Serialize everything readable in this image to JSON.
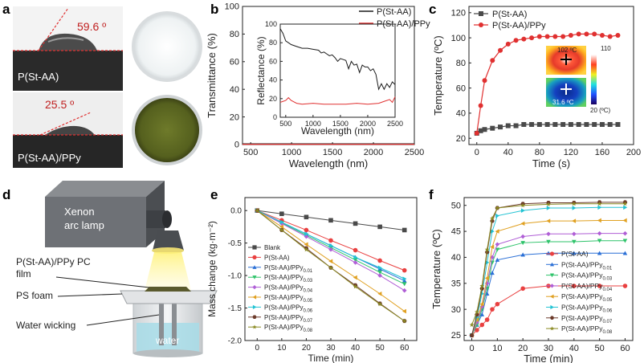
{
  "figure": {
    "panels": {
      "a": {
        "label": "a",
        "samples": [
          {
            "name": "P(St-AA)",
            "contact_angle": "59.6 º"
          },
          {
            "name": "P(St-AA)/PPy",
            "contact_angle": "25.5 º"
          }
        ]
      },
      "d": {
        "label": "d",
        "lamp": "Xenon\narc lamp",
        "film": "P(St-AA)/PPy PC\nfilm",
        "foam": "PS foam",
        "wicking": "Water wicking",
        "water": "water"
      }
    },
    "colors": {
      "black": "#1a1a1a",
      "red": "#e03030",
      "blank": "#4a4a4a",
      "red_e": "#e94040",
      "blue_01": "#2a6fd6",
      "green_03": "#2ec36a",
      "purple_04": "#b05fd6",
      "orange_05": "#e0a020",
      "cyan_06": "#22c3d3",
      "brown_07": "#6b3a2a",
      "olive_08": "#8a8a22"
    }
  },
  "chart_data": [
    {
      "panel": "b",
      "type": "line",
      "xlabel": "Wavelength (nm)",
      "ylabel": "Transmittance (%)",
      "xlim": [
        400,
        2500
      ],
      "ylim": [
        0,
        100
      ],
      "xticks": [
        500,
        1000,
        1500,
        2000,
        2500
      ],
      "yticks": [
        0,
        20,
        40,
        60,
        80,
        100
      ],
      "series": [
        {
          "name": "P(St-AA)",
          "x": [
            400,
            2500
          ],
          "y": [
            0.5,
            0.5
          ]
        },
        {
          "name": "P(St-AA)/PPy",
          "x": [
            400,
            2500
          ],
          "y": [
            0.2,
            0.2
          ]
        }
      ],
      "inset": {
        "type": "line",
        "xlabel": "Wavelength (nm)",
        "ylabel": "Reflectance (%)",
        "xlim": [
          400,
          2500
        ],
        "ylim": [
          0,
          100
        ],
        "xticks": [
          500,
          1000,
          1500,
          2000,
          2500
        ],
        "yticks": [
          0,
          20,
          40,
          60,
          80,
          100
        ],
        "series": [
          {
            "name": "P(St-AA)",
            "x": [
              400,
              450,
              500,
              600,
              700,
              800,
              900,
              1000,
              1100,
              1150,
              1200,
              1250,
              1300,
              1350,
              1400,
              1450,
              1500,
              1550,
              1600,
              1650,
              1700,
              1750,
              1800,
              1850,
              1900,
              1950,
              2000,
              2050,
              2100,
              2150,
              2200,
              2250,
              2300,
              2350,
              2400,
              2450,
              2500
            ],
            "y": [
              95,
              90,
              82,
              78,
              76,
              74,
              74,
              73,
              72,
              69,
              70,
              68,
              66,
              67,
              64,
              60,
              63,
              62,
              61,
              52,
              60,
              56,
              57,
              48,
              56,
              54,
              54,
              50,
              52,
              46,
              30,
              36,
              30,
              36,
              32,
              38,
              35
            ]
          },
          {
            "name": "P(St-AA)/PPy",
            "x": [
              400,
              450,
              500,
              550,
              600,
              700,
              800,
              1000,
              1200,
              1400,
              1600,
              1800,
              2000,
              2200,
              2300,
              2400,
              2450,
              2500
            ],
            "y": [
              16,
              17,
              18,
              21,
              18,
              15,
              14,
              15,
              14,
              14,
              14,
              15,
              14,
              15,
              17,
              19,
              16,
              22
            ]
          }
        ]
      }
    },
    {
      "panel": "c",
      "type": "line",
      "xlabel": "Time (s)",
      "ylabel": "Temperature (ºC)",
      "xlim": [
        -10,
        200
      ],
      "ylim": [
        15,
        125
      ],
      "xticks": [
        0,
        40,
        80,
        120,
        160,
        200
      ],
      "yticks": [
        20,
        40,
        60,
        80,
        100,
        120
      ],
      "series": [
        {
          "name": "P(St-AA)",
          "x": [
            0,
            5,
            10,
            20,
            30,
            40,
            50,
            60,
            70,
            80,
            90,
            100,
            110,
            120,
            130,
            140,
            150,
            160,
            170,
            180
          ],
          "y": [
            24,
            26,
            27,
            28,
            29,
            30,
            30,
            31,
            31,
            31,
            31,
            31,
            31,
            31,
            31,
            31,
            31,
            31,
            31,
            31
          ]
        },
        {
          "name": "P(St-AA)/PPy",
          "x": [
            0,
            5,
            10,
            20,
            30,
            40,
            50,
            60,
            70,
            80,
            90,
            100,
            110,
            120,
            130,
            140,
            150,
            160,
            170,
            180
          ],
          "y": [
            24,
            46,
            66,
            82,
            90,
            95,
            98,
            99,
            100,
            101,
            101,
            101,
            101,
            102,
            103,
            103,
            103,
            102,
            101,
            102
          ]
        }
      ],
      "inset_thermal": {
        "top_label": "102 ºC",
        "bottom_label": "31.6 ºC",
        "scale_max": "110",
        "scale_min": "20 (ºC)"
      }
    },
    {
      "panel": "e",
      "type": "line",
      "xlabel": "Time (min)",
      "ylabel": "Mass change (kg·m⁻²)",
      "xlim": [
        -5,
        65
      ],
      "ylim": [
        -2.0,
        0.2
      ],
      "xticks": [
        0,
        10,
        20,
        30,
        40,
        50,
        60
      ],
      "yticks": [
        0.0,
        -0.5,
        -1.0,
        -1.5,
        -2.0
      ],
      "x": [
        0,
        10,
        20,
        30,
        40,
        50,
        60
      ],
      "series": [
        {
          "name": "Blank",
          "values": [
            0,
            -0.05,
            -0.1,
            -0.15,
            -0.2,
            -0.25,
            -0.3
          ]
        },
        {
          "name": "P(St-AA)",
          "values": [
            0,
            -0.15,
            -0.3,
            -0.46,
            -0.61,
            -0.77,
            -0.92
          ]
        },
        {
          "name": "P(St-AA)/PPy0.01",
          "values": [
            0,
            -0.18,
            -0.36,
            -0.54,
            -0.72,
            -0.9,
            -1.08
          ]
        },
        {
          "name": "P(St-AA)/PPy0.03",
          "values": [
            0,
            -0.19,
            -0.38,
            -0.57,
            -0.76,
            -0.95,
            -1.13
          ]
        },
        {
          "name": "P(St-AA)/PPy0.04",
          "values": [
            0,
            -0.2,
            -0.4,
            -0.6,
            -0.8,
            -1.0,
            -1.23
          ]
        },
        {
          "name": "P(St-AA)/PPy0.05",
          "values": [
            0,
            -0.25,
            -0.52,
            -0.78,
            -1.03,
            -1.28,
            -1.55
          ]
        },
        {
          "name": "P(St-AA)/PPy0.06",
          "values": [
            0,
            -0.18,
            -0.36,
            -0.54,
            -0.72,
            -0.88,
            -1.05
          ]
        },
        {
          "name": "P(St-AA)/PPy0.07",
          "values": [
            0,
            -0.3,
            -0.58,
            -0.88,
            -1.15,
            -1.43,
            -1.7
          ]
        },
        {
          "name": "P(St-AA)/PPy0.08",
          "values": [
            0,
            -0.3,
            -0.6,
            -0.88,
            -1.17,
            -1.44,
            -1.7
          ]
        }
      ]
    },
    {
      "panel": "f",
      "type": "line",
      "xlabel": "Time (min)",
      "ylabel": "Temperature (ºC)",
      "xlim": [
        -3,
        63
      ],
      "ylim": [
        24,
        51.5
      ],
      "xticks": [
        0,
        10,
        20,
        30,
        40,
        50,
        60
      ],
      "yticks": [
        25,
        30,
        35,
        40,
        45,
        50
      ],
      "x": [
        0,
        2,
        4,
        6,
        8,
        10,
        20,
        30,
        40,
        50,
        60
      ],
      "series": [
        {
          "name": "P(St-AA)",
          "values": [
            25,
            26,
            27,
            28,
            30,
            31,
            34,
            34.5,
            34.5,
            34.5,
            34.5
          ]
        },
        {
          "name": "P(St-AA)/PPy0.01",
          "values": [
            25,
            27,
            29,
            33,
            37,
            39.5,
            40.5,
            40.8,
            40.8,
            40.8,
            40.8
          ]
        },
        {
          "name": "P(St-AA)/PPy0.03",
          "values": [
            25,
            27,
            30,
            34,
            39,
            41.5,
            42.8,
            43,
            43,
            43.2,
            43.2
          ]
        },
        {
          "name": "P(St-AA)/PPy0.04",
          "values": [
            25,
            27.5,
            30.5,
            35,
            40,
            42.5,
            44,
            44.5,
            44.5,
            44.6,
            44.6
          ]
        },
        {
          "name": "P(St-AA)/PPy0.05",
          "values": [
            25,
            28,
            31,
            36,
            42,
            45,
            46.5,
            47,
            47,
            47.1,
            47.1
          ]
        },
        {
          "name": "P(St-AA)/PPy0.06",
          "values": [
            25,
            28.5,
            33,
            39,
            45,
            48,
            49,
            49.5,
            49.5,
            49.6,
            49.6
          ]
        },
        {
          "name": "P(St-AA)/PPy0.07",
          "values": [
            25,
            29,
            34,
            41,
            47,
            49.5,
            50.3,
            50.5,
            50.5,
            50.6,
            50.6
          ]
        },
        {
          "name": "P(St-AA)/PPy0.08",
          "values": [
            27,
            29.5,
            34.5,
            41.5,
            47.5,
            49.5,
            50,
            50.2,
            50.3,
            50.3,
            50.3
          ]
        }
      ]
    }
  ]
}
